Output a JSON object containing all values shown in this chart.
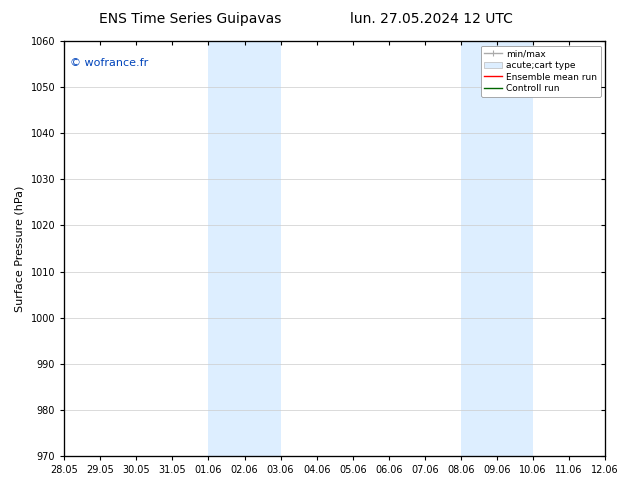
{
  "title_left": "ENS Time Series Guipavas",
  "title_right": "lun. 27.05.2024 12 UTC",
  "ylabel": "Surface Pressure (hPa)",
  "ylim": [
    970,
    1060
  ],
  "yticks": [
    970,
    980,
    990,
    1000,
    1010,
    1020,
    1030,
    1040,
    1050,
    1060
  ],
  "xtick_labels": [
    "28.05",
    "29.05",
    "30.05",
    "31.05",
    "01.06",
    "02.06",
    "03.06",
    "04.06",
    "05.06",
    "06.06",
    "07.06",
    "08.06",
    "09.06",
    "10.06",
    "11.06",
    "12.06"
  ],
  "xtick_positions": [
    0,
    1,
    2,
    3,
    4,
    5,
    6,
    7,
    8,
    9,
    10,
    11,
    12,
    13,
    14,
    15
  ],
  "shaded_regions": [
    {
      "xstart": 4,
      "xend": 6,
      "color": "#ddeeff"
    },
    {
      "xstart": 11,
      "xend": 13,
      "color": "#ddeeff"
    }
  ],
  "watermark": "© wofrance.fr",
  "watermark_color": "#0044bb",
  "legend_entries": [
    {
      "label": "min/max",
      "color": "#aaaaaa",
      "lw": 1.0,
      "style": "minmax"
    },
    {
      "label": "acute;cart type",
      "color": "#aaaaaa",
      "lw": 4,
      "style": "box"
    },
    {
      "label": "Ensemble mean run",
      "color": "#ff0000",
      "lw": 1.0,
      "style": "line"
    },
    {
      "label": "Controll run",
      "color": "#006600",
      "lw": 1.0,
      "style": "line"
    }
  ],
  "background_color": "#ffffff",
  "grid_color": "#cccccc",
  "title_fontsize": 10,
  "tick_fontsize": 7,
  "ylabel_fontsize": 8,
  "watermark_fontsize": 8,
  "legend_fontsize": 6.5
}
